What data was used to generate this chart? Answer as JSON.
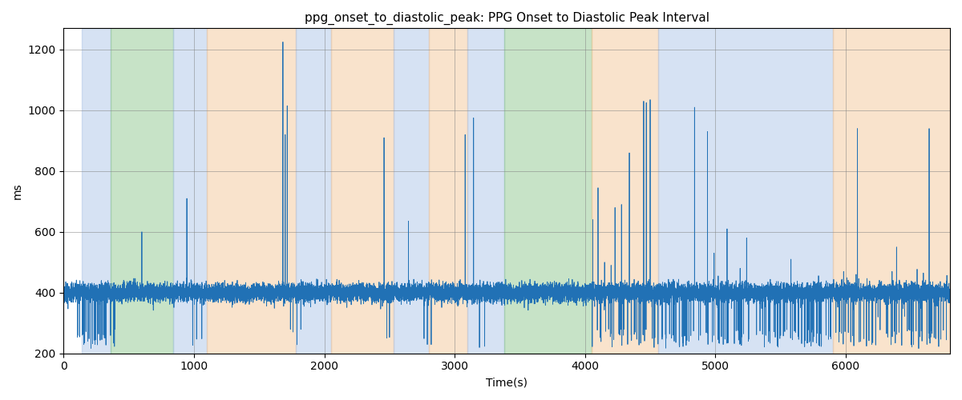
{
  "title": "ppg_onset_to_diastolic_peak: PPG Onset to Diastolic Peak Interval",
  "xlabel": "Time(s)",
  "ylabel": "ms",
  "ylim": [
    200,
    1270
  ],
  "xlim": [
    0,
    6800
  ],
  "yticks": [
    200,
    400,
    600,
    800,
    1000,
    1200
  ],
  "line_color": "#2171b5",
  "line_width": 0.6,
  "bg_regions": [
    {
      "xmin": 140,
      "xmax": 360,
      "color": "#aec6e8",
      "alpha": 0.5
    },
    {
      "xmin": 360,
      "xmax": 840,
      "color": "#90c890",
      "alpha": 0.5
    },
    {
      "xmin": 840,
      "xmax": 1100,
      "color": "#aec6e8",
      "alpha": 0.5
    },
    {
      "xmin": 1100,
      "xmax": 1780,
      "color": "#f5c99a",
      "alpha": 0.5
    },
    {
      "xmin": 1780,
      "xmax": 2050,
      "color": "#aec6e8",
      "alpha": 0.5
    },
    {
      "xmin": 2050,
      "xmax": 2530,
      "color": "#f5c99a",
      "alpha": 0.5
    },
    {
      "xmin": 2530,
      "xmax": 2800,
      "color": "#aec6e8",
      "alpha": 0.5
    },
    {
      "xmin": 2800,
      "xmax": 3100,
      "color": "#f5c99a",
      "alpha": 0.5
    },
    {
      "xmin": 3100,
      "xmax": 3380,
      "color": "#aec6e8",
      "alpha": 0.5
    },
    {
      "xmin": 3380,
      "xmax": 4050,
      "color": "#90c890",
      "alpha": 0.5
    },
    {
      "xmin": 4050,
      "xmax": 4560,
      "color": "#f5c99a",
      "alpha": 0.5
    },
    {
      "xmin": 4560,
      "xmax": 5900,
      "color": "#aec6e8",
      "alpha": 0.5
    },
    {
      "xmin": 5900,
      "xmax": 6800,
      "color": "#f5c99a",
      "alpha": 0.5
    }
  ],
  "seed": 1234,
  "base_value": 400,
  "noise_std": 15,
  "total_points": 16500,
  "x_scale": 0.412
}
